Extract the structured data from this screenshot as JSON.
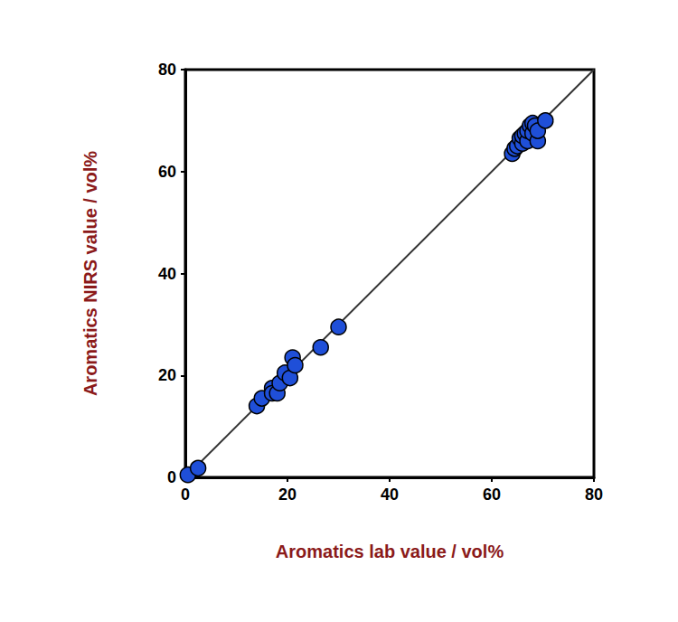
{
  "chart_data": {
    "type": "scatter",
    "x_label": "Aromatics lab value / vol%",
    "y_label": "Aromatics NIRS value / vol%",
    "x": [
      0.5,
      2.5,
      14,
      15,
      17,
      17,
      18,
      18.5,
      19.5,
      20.5,
      21,
      21.5,
      26.5,
      30,
      64,
      64.5,
      65,
      65.5,
      66,
      66,
      66.5,
      67,
      67,
      67.5,
      68,
      68,
      68.5,
      69,
      69,
      70.5
    ],
    "values": [
      0.5,
      1.8,
      14,
      15.5,
      17.5,
      16.5,
      16.5,
      18.5,
      20.5,
      19.5,
      23.5,
      22,
      25.5,
      29.5,
      63.5,
      64.5,
      65,
      66.5,
      65.5,
      67,
      67.5,
      66,
      68,
      69,
      67.5,
      69.5,
      69,
      66,
      68,
      70
    ],
    "color": "#1f4fd8",
    "marker": "circle",
    "xlim": [
      0,
      80
    ],
    "ylim": [
      0,
      80
    ],
    "xticks": [
      0,
      20,
      40,
      60,
      80
    ],
    "yticks": [
      0,
      20,
      40,
      60,
      80
    ],
    "grid": false
  }
}
